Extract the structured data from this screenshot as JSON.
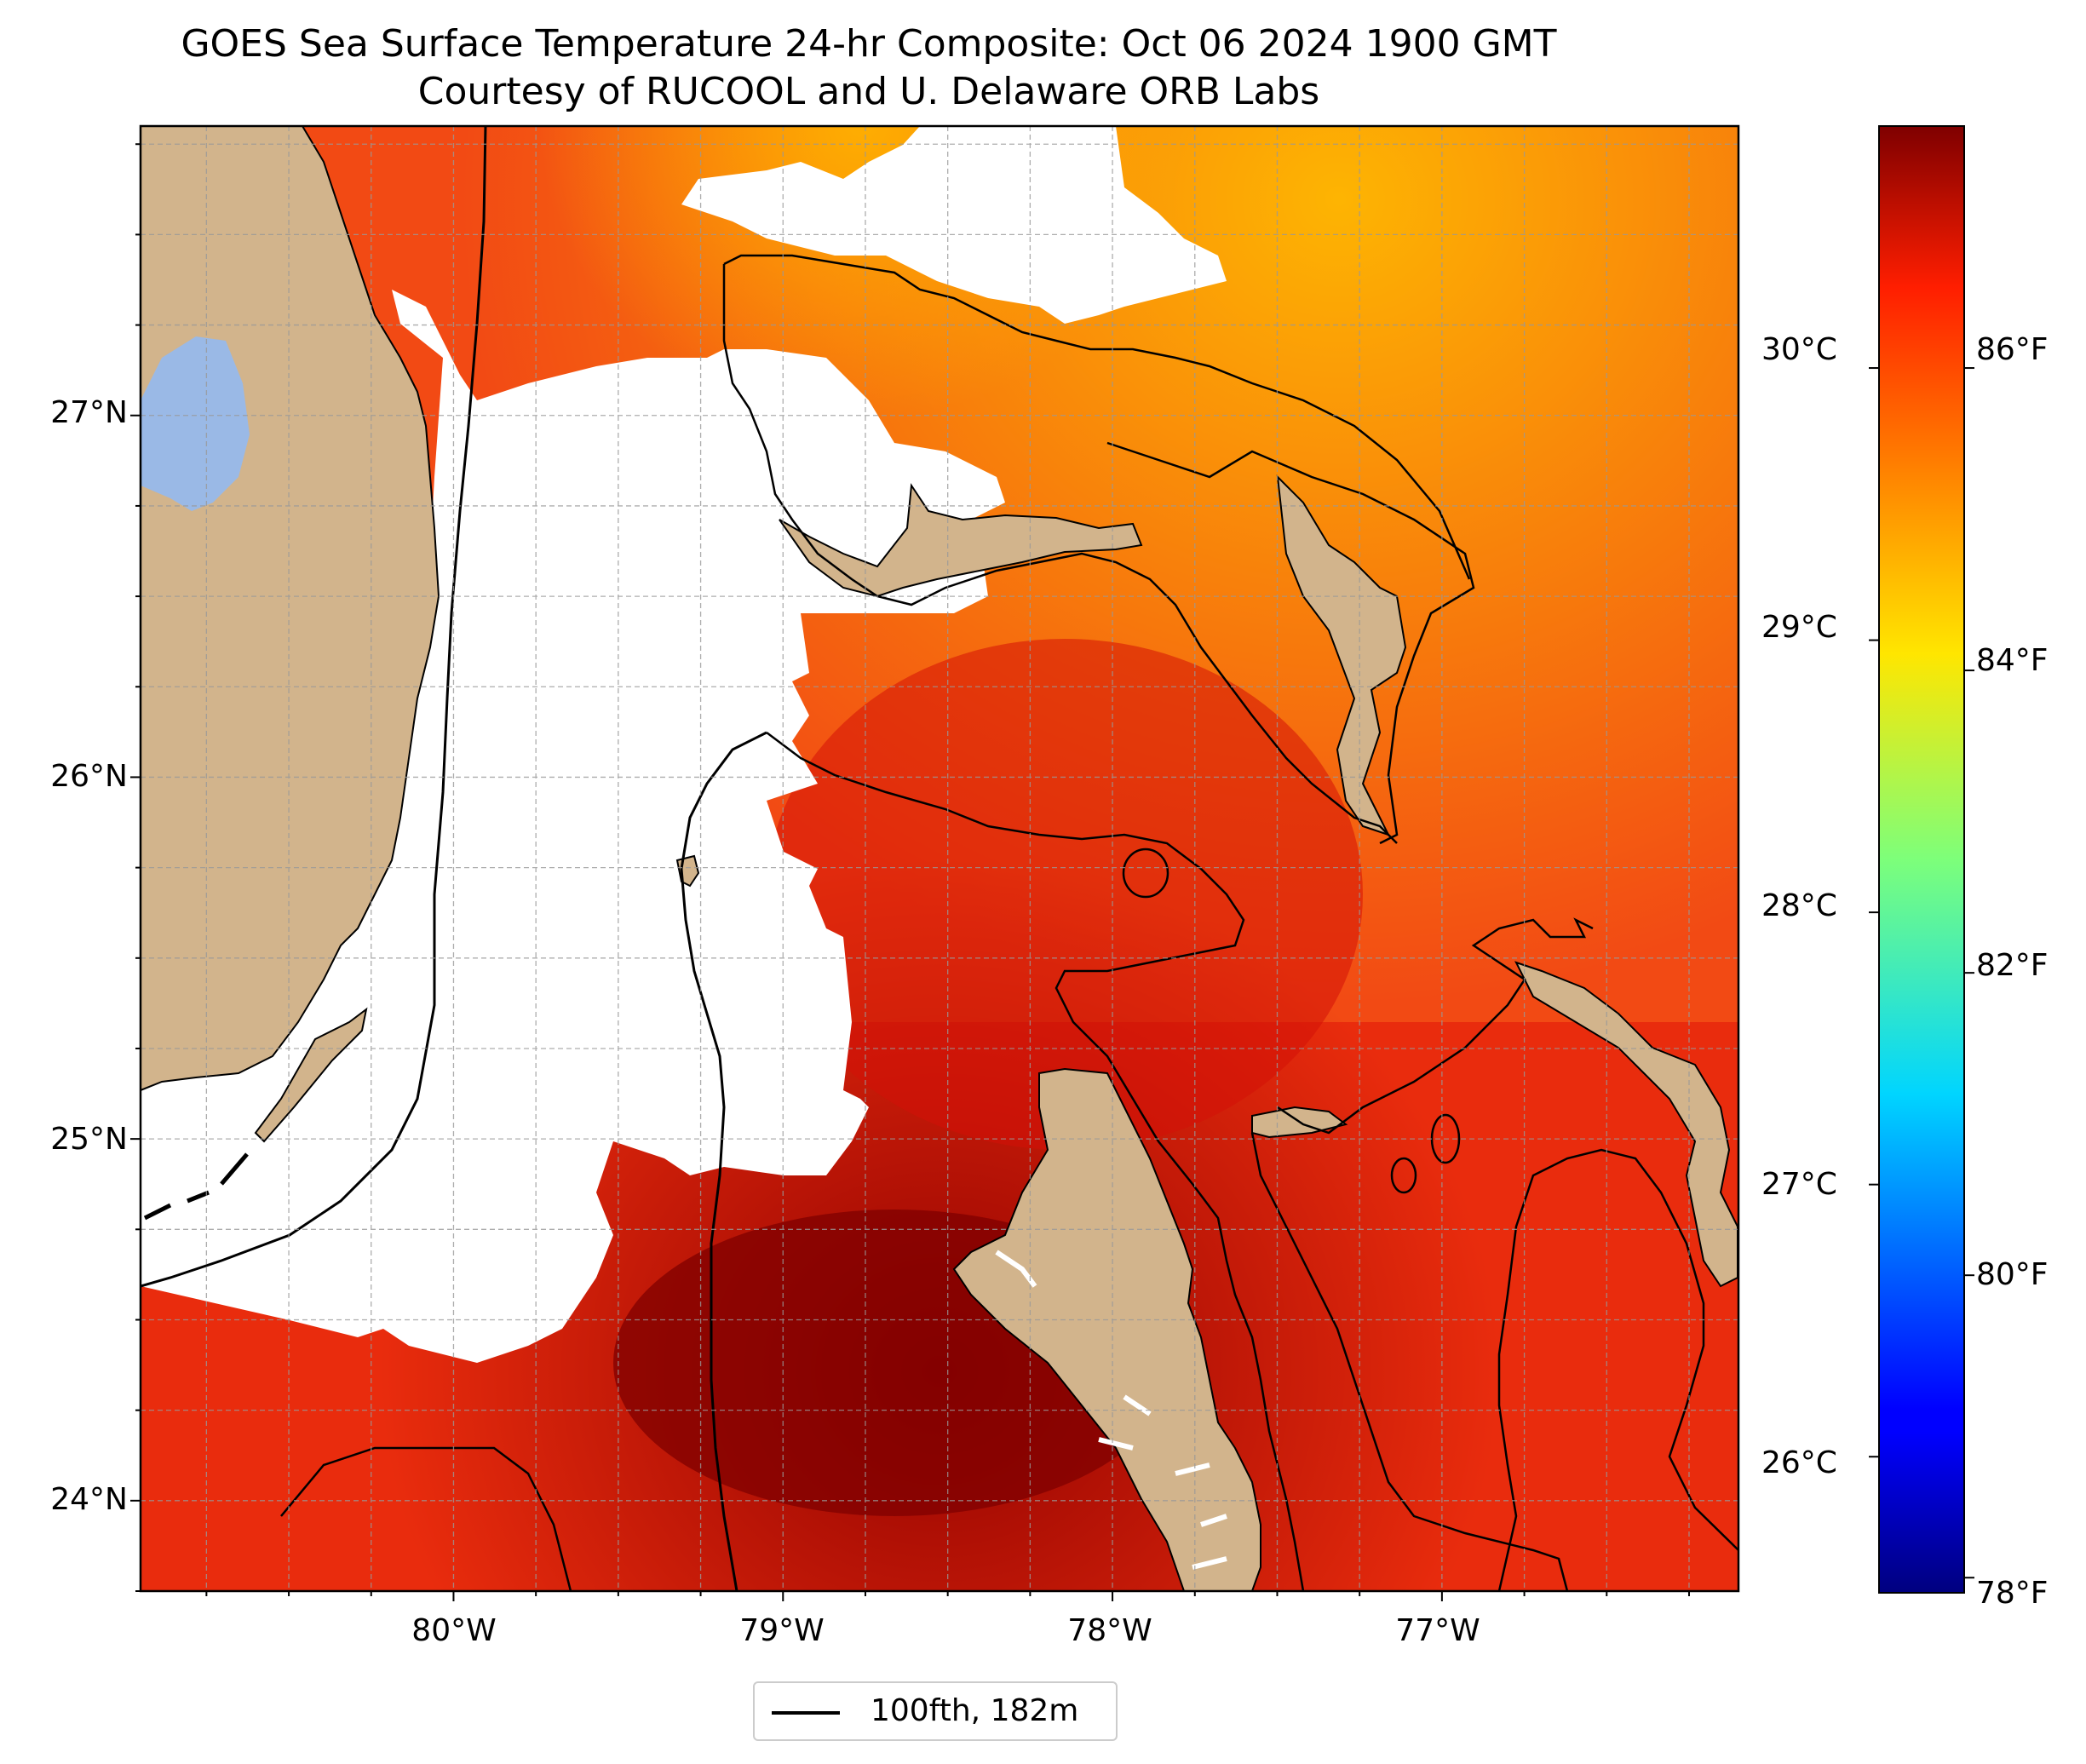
{
  "title": {
    "line1": "GOES Sea Surface Temperature 24-hr Composite: Oct 06 2024 1900 GMT",
    "line2": "Courtesy of RUCOOL and U. Delaware ORB Labs"
  },
  "map": {
    "lat_range": [
      23.75,
      27.8
    ],
    "lon_range": [
      -80.95,
      -76.1
    ],
    "lat_ticks": [
      "27°N",
      "26°N",
      "25°N",
      "24°N"
    ],
    "lon_ticks": [
      "80°W",
      "79°W",
      "78°W",
      "77°W"
    ],
    "grid": "dashed",
    "land_color": "#d2b48c",
    "lake_color": "#9ab9e6",
    "cloud_no_data_color": "#ffffff",
    "regions": [
      "Florida",
      "Lake Okeechobee",
      "Florida Keys",
      "Grand Bahama",
      "Abaco",
      "Andros",
      "Eleuthera",
      "Bimini"
    ]
  },
  "colorbar": {
    "colormap": "jet",
    "celsius_ticks": [
      "30°C",
      "29°C",
      "28°C",
      "27°C",
      "26°C"
    ],
    "fahrenheit_ticks": [
      "86°F",
      "84°F",
      "82°F",
      "80°F",
      "78°F"
    ],
    "range_f": [
      77.9,
      87.6
    ]
  },
  "legend": {
    "label": "100fth, 182m",
    "line_color": "#000000"
  }
}
